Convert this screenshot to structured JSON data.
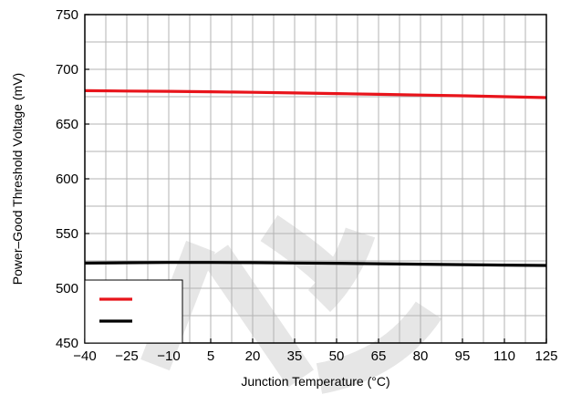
{
  "chart_data": {
    "type": "line",
    "title": "",
    "xlabel": "Junction Temperature (°C)",
    "ylabel": "Power–Good Threshold Voltage (mV)",
    "xlim": [
      -40,
      125
    ],
    "ylim": [
      450,
      750
    ],
    "x_ticks": [
      -40,
      -25,
      -10,
      5,
      20,
      35,
      50,
      65,
      80,
      95,
      110,
      125
    ],
    "x_tick_labels": [
      "−40",
      "−25",
      "−10",
      "5",
      "20",
      "35",
      "50",
      "65",
      "80",
      "95",
      "110",
      "125"
    ],
    "y_ticks": [
      450,
      500,
      550,
      600,
      650,
      700,
      750
    ],
    "y_tick_labels": [
      "450",
      "500",
      "550",
      "600",
      "650",
      "700",
      "750"
    ],
    "x_minor_step": 7.5,
    "y_minor_step": 25,
    "grid": true,
    "legend_placement": "bottom-left",
    "series": [
      {
        "color": "#e8141b",
        "x": [
          -40,
          -25,
          -10,
          5,
          20,
          35,
          50,
          65,
          80,
          95,
          110,
          125
        ],
        "values": [
          680.5,
          680.2,
          679.9,
          679.5,
          679.0,
          678.4,
          677.8,
          677.2,
          676.5,
          675.8,
          675.0,
          674.2
        ]
      },
      {
        "color": "#000000",
        "x": [
          -40,
          -25,
          -10,
          5,
          20,
          35,
          50,
          65,
          80,
          95,
          110,
          125
        ],
        "values": [
          523.0,
          523.3,
          523.6,
          523.6,
          523.4,
          523.1,
          522.8,
          522.4,
          522.0,
          521.6,
          521.2,
          520.8
        ]
      }
    ]
  }
}
